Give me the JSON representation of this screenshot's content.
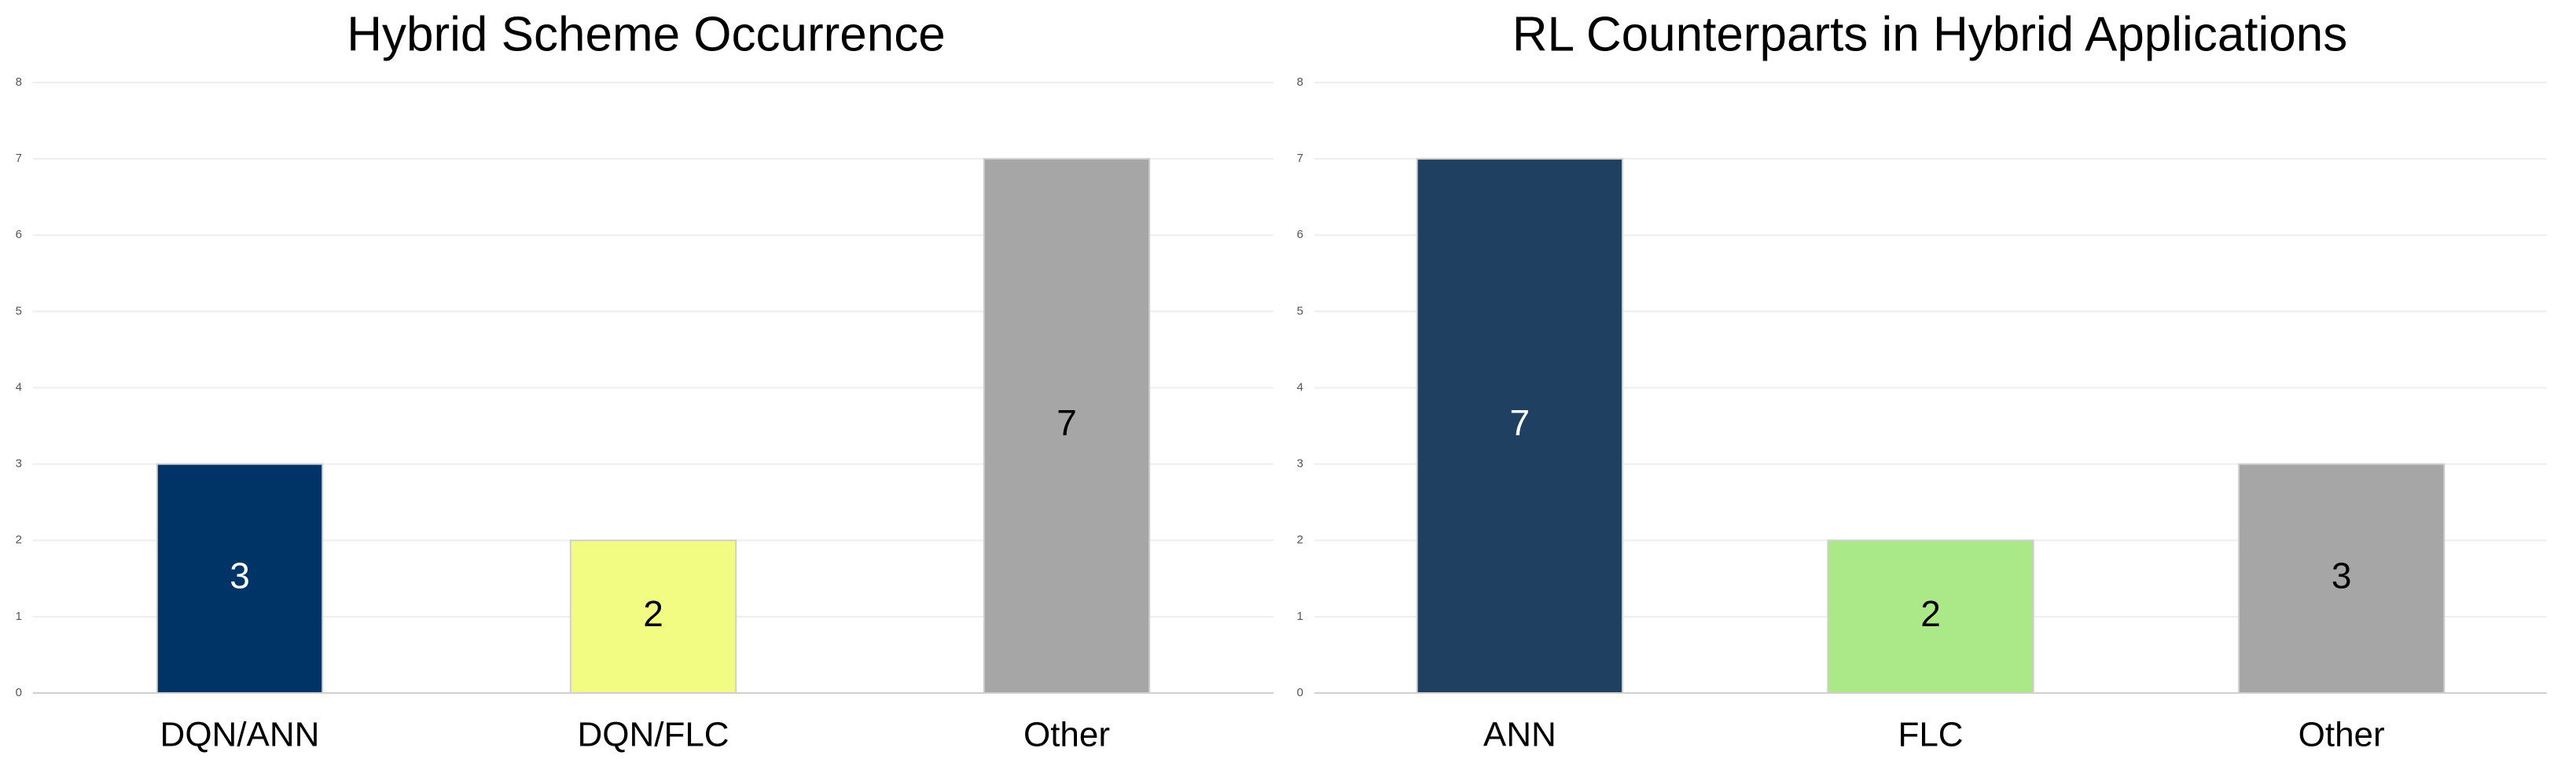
{
  "chart_data": [
    {
      "type": "bar",
      "title": "Hybrid Scheme Occurrence",
      "categories": [
        "DQN/ANN",
        "DQN/FLC",
        "Other"
      ],
      "values": [
        3,
        2,
        7
      ],
      "colors": [
        "#003366",
        "#f2fb82",
        "#a6a6a6"
      ],
      "ylim": [
        0,
        8
      ],
      "yticks": [
        0,
        1,
        2,
        3,
        4,
        5,
        6,
        7,
        8
      ],
      "grid": true
    },
    {
      "type": "bar",
      "title": "RL Counterparts in Hybrid Applications",
      "categories": [
        "ANN",
        "FLC",
        "Other"
      ],
      "values": [
        7,
        2,
        3
      ],
      "colors": [
        "#1f4060",
        "#abe887",
        "#a6a6a6"
      ],
      "ylim": [
        0,
        8
      ],
      "yticks": [
        0,
        1,
        2,
        3,
        4,
        5,
        6,
        7,
        8
      ],
      "grid": true
    }
  ]
}
